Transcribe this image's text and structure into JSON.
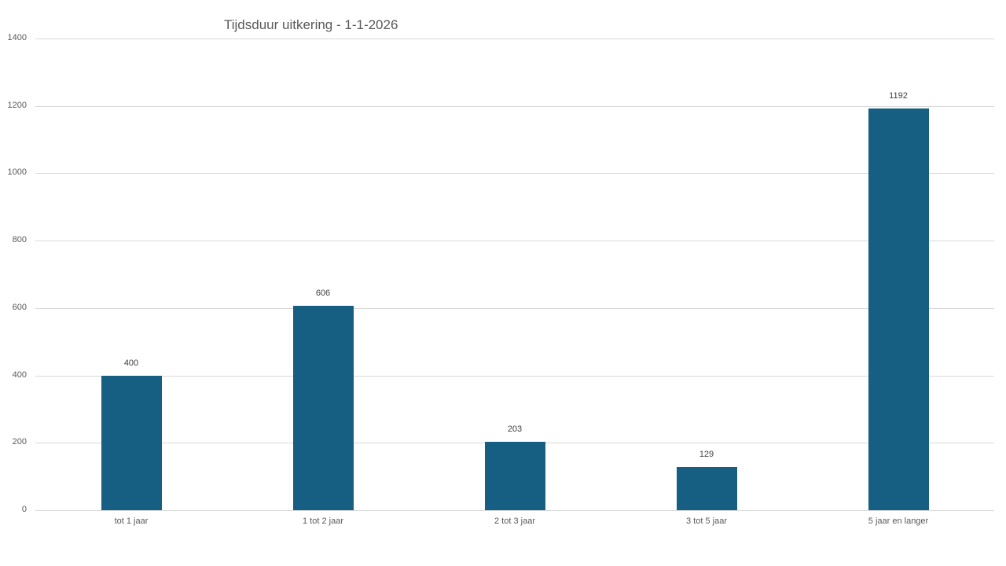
{
  "chart_data": {
    "type": "bar",
    "title": "Tijdsduur uitkering - 1-1-2026",
    "xlabel": "",
    "ylabel": "",
    "categories": [
      "tot 1 jaar",
      "1 tot 2 jaar",
      "2 tot 3 jaar",
      "3 tot 5 jaar",
      "5 jaar en langer"
    ],
    "values": [
      400,
      606,
      203,
      129,
      1192
    ],
    "data_labels": [
      "400",
      "606",
      "203",
      "129",
      "1192"
    ],
    "ylim": [
      0,
      1400
    ],
    "yticks": [
      "0",
      "200",
      "400",
      "600",
      "800",
      "1000",
      "1200",
      "1400"
    ],
    "grid": true,
    "legend": "none",
    "bar_color": "#175f82"
  }
}
